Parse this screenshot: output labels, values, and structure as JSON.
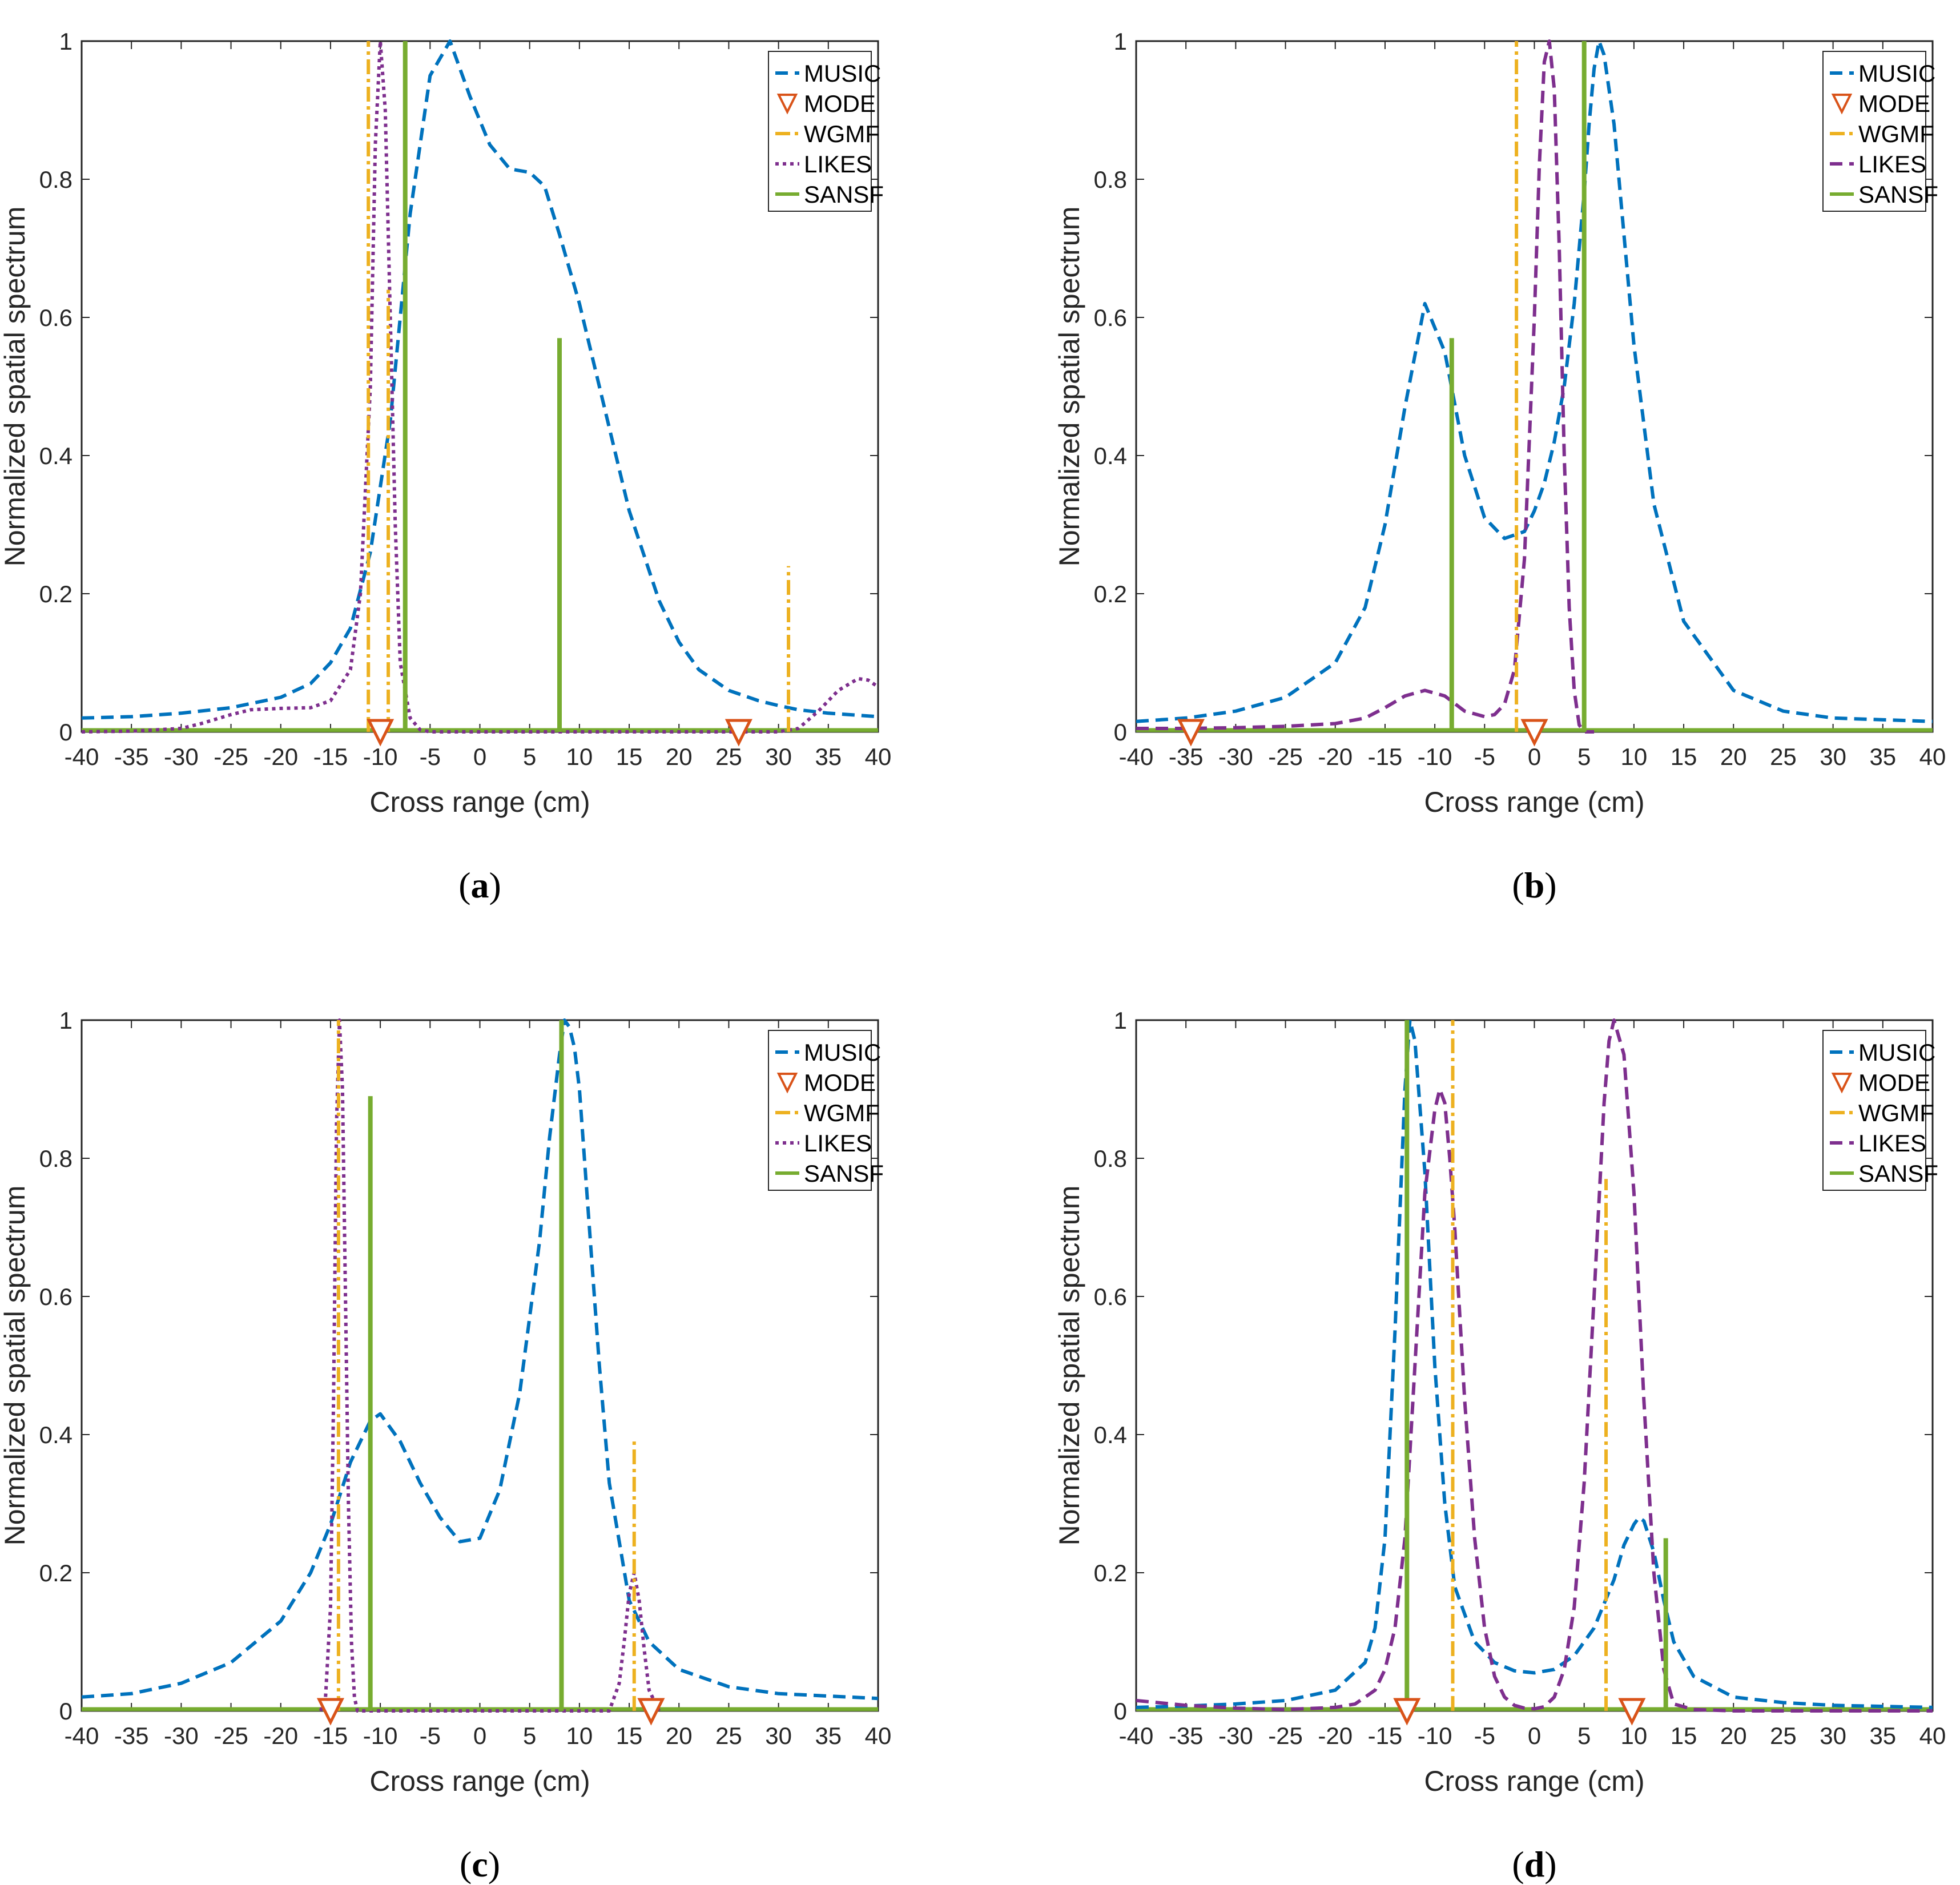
{
  "colors": {
    "MUSIC": "#0072BD",
    "MODE": "#D95319",
    "WGMF": "#EDB120",
    "LIKES": "#7E2F8E",
    "SANSF": "#77AC30"
  },
  "chart_data": [
    {
      "panel": "a",
      "caption_letter": "a",
      "type": "line",
      "xlabel": "Cross range (cm)",
      "ylabel": "Normalized spatial spectrum",
      "xlim": [
        -40,
        40
      ],
      "ylim": [
        0,
        1
      ],
      "xticks": [
        "-40",
        "-35",
        "-30",
        "-25",
        "-20",
        "-15",
        "-10",
        "-5",
        "0",
        "5",
        "10",
        "15",
        "20",
        "25",
        "30",
        "35",
        "40"
      ],
      "yticks": [
        "0",
        "0.2",
        "0.4",
        "0.6",
        "0.8",
        "1"
      ],
      "legend": [
        "MUSIC",
        "MODE",
        "WGMF",
        "LIKES",
        "SANSF"
      ],
      "series": {
        "MUSIC": {
          "style": "dashed",
          "x": [
            -40,
            -35,
            -30,
            -25,
            -20,
            -17,
            -15,
            -13,
            -11,
            -9,
            -7,
            -5,
            -3,
            -1,
            1,
            3,
            5,
            6.5,
            8,
            10,
            12,
            15,
            18,
            20,
            22,
            25,
            28,
            30,
            32,
            35,
            40
          ],
          "y": [
            0.02,
            0.022,
            0.027,
            0.035,
            0.05,
            0.07,
            0.1,
            0.15,
            0.26,
            0.45,
            0.75,
            0.95,
            1.0,
            0.92,
            0.85,
            0.815,
            0.81,
            0.79,
            0.72,
            0.62,
            0.5,
            0.32,
            0.19,
            0.13,
            0.09,
            0.06,
            0.045,
            0.038,
            0.032,
            0.027,
            0.022
          ]
        },
        "LIKES": {
          "style": "dotted",
          "x": [
            -40,
            -35,
            -30,
            -28,
            -25,
            -23,
            -20,
            -17,
            -15,
            -13,
            -12,
            -11,
            -10.5,
            -10,
            -9.5,
            -9,
            -8.5,
            -8,
            -7,
            -6,
            -5,
            -4,
            30,
            32,
            34,
            36,
            38,
            39,
            40
          ],
          "y": [
            0,
            0.001,
            0.005,
            0.012,
            0.025,
            0.032,
            0.034,
            0.035,
            0.045,
            0.09,
            0.2,
            0.5,
            0.85,
            1.0,
            0.9,
            0.6,
            0.3,
            0.1,
            0.02,
            0.003,
            0,
            0,
            0,
            0.005,
            0.03,
            0.06,
            0.077,
            0.075,
            0.065
          ]
        },
        "WGMF": {
          "style": "dashdot",
          "peaks": [
            [
              -11.2,
              1.0
            ],
            [
              -9.2,
              0.64
            ],
            [
              31,
              0.24
            ]
          ]
        },
        "SANSF": {
          "style": "solid",
          "peaks": [
            [
              -7.5,
              1.0
            ],
            [
              8,
              0.57
            ]
          ]
        },
        "MODE": {
          "style": "marker",
          "x": [
            -10,
            26
          ],
          "y": [
            0,
            0
          ]
        }
      }
    },
    {
      "panel": "b",
      "caption_letter": "b",
      "type": "line",
      "xlabel": "Cross range (cm)",
      "ylabel": "Normalized spatial spectrum",
      "xlim": [
        -40,
        40
      ],
      "ylim": [
        0,
        1
      ],
      "xticks": [
        "-40",
        "-35",
        "-30",
        "-25",
        "-20",
        "-15",
        "-10",
        "-5",
        "0",
        "5",
        "10",
        "15",
        "20",
        "25",
        "30",
        "35",
        "40"
      ],
      "yticks": [
        "0",
        "0.2",
        "0.4",
        "0.6",
        "0.8",
        "1"
      ],
      "legend": [
        "MUSIC",
        "MODE",
        "WGMF",
        "LIKES",
        "SANSF"
      ],
      "series": {
        "MUSIC": {
          "style": "dashed",
          "x": [
            -40,
            -35,
            -30,
            -25,
            -20,
            -17,
            -15,
            -13,
            -11,
            -9,
            -7,
            -5,
            -3,
            -1,
            0,
            1,
            2,
            3,
            4,
            5,
            5.5,
            6,
            6.5,
            7,
            8,
            9,
            10,
            12,
            15,
            20,
            25,
            30,
            40
          ],
          "y": [
            0.015,
            0.02,
            0.03,
            0.05,
            0.1,
            0.18,
            0.3,
            0.47,
            0.62,
            0.55,
            0.4,
            0.31,
            0.28,
            0.29,
            0.32,
            0.36,
            0.42,
            0.5,
            0.62,
            0.78,
            0.88,
            0.96,
            1.0,
            0.98,
            0.88,
            0.72,
            0.56,
            0.33,
            0.16,
            0.06,
            0.03,
            0.02,
            0.015
          ]
        },
        "LIKES": {
          "style": "dashed",
          "x": [
            -40,
            -35,
            -30,
            -25,
            -20,
            -17,
            -15,
            -13,
            -11,
            -9,
            -7,
            -5,
            -4,
            -3,
            -2,
            -1,
            0,
            0.5,
            1,
            1.5,
            2,
            2.5,
            3,
            3.5,
            4,
            4.5,
            5,
            6
          ],
          "y": [
            0.005,
            0.005,
            0.006,
            0.008,
            0.012,
            0.02,
            0.035,
            0.052,
            0.06,
            0.052,
            0.03,
            0.022,
            0.025,
            0.04,
            0.09,
            0.25,
            0.6,
            0.82,
            0.97,
            1.0,
            0.93,
            0.7,
            0.4,
            0.18,
            0.06,
            0.01,
            0,
            0
          ]
        },
        "WGMF": {
          "style": "dashdot",
          "peaks": [
            [
              -1.8,
              1.0
            ]
          ]
        },
        "SANSF": {
          "style": "solid",
          "peaks": [
            [
              -8.3,
              0.57
            ],
            [
              5,
              1.0
            ]
          ]
        },
        "MODE": {
          "style": "marker",
          "x": [
            -34.5,
            0
          ],
          "y": [
            0,
            0
          ]
        }
      }
    },
    {
      "panel": "c",
      "caption_letter": "c",
      "type": "line",
      "xlabel": "Cross range (cm)",
      "ylabel": "Normalized spatial spectrum",
      "xlim": [
        -40,
        40
      ],
      "ylim": [
        0,
        1
      ],
      "xticks": [
        "-40",
        "-35",
        "-30",
        "-25",
        "-20",
        "-15",
        "-10",
        "-5",
        "0",
        "5",
        "10",
        "15",
        "20",
        "25",
        "30",
        "35",
        "40"
      ],
      "yticks": [
        "0",
        "0.2",
        "0.4",
        "0.6",
        "0.8",
        "1"
      ],
      "legend": [
        "MUSIC",
        "MODE",
        "WGMF",
        "LIKES",
        "SANSF"
      ],
      "series": {
        "MUSIC": {
          "style": "dashed",
          "x": [
            -40,
            -35,
            -30,
            -25,
            -20,
            -17,
            -15,
            -13,
            -11,
            -10,
            -8,
            -6,
            -4,
            -2,
            0,
            2,
            4,
            6,
            7,
            8,
            8.5,
            9,
            9.5,
            10,
            11,
            12,
            13,
            15,
            17,
            20,
            25,
            30,
            40
          ],
          "y": [
            0.02,
            0.025,
            0.04,
            0.07,
            0.13,
            0.2,
            0.27,
            0.36,
            0.42,
            0.43,
            0.39,
            0.33,
            0.28,
            0.245,
            0.25,
            0.32,
            0.46,
            0.68,
            0.83,
            0.95,
            1.0,
            0.99,
            0.96,
            0.9,
            0.7,
            0.5,
            0.33,
            0.16,
            0.1,
            0.06,
            0.035,
            0.025,
            0.018
          ]
        },
        "LIKES": {
          "style": "dotted",
          "x": [
            -16,
            -15.5,
            -15,
            -14.7,
            -14.4,
            -14.1,
            -13.8,
            -13.5,
            -13.2,
            -12.9,
            -12.6,
            -12.3,
            13,
            14,
            14.5,
            15,
            15.5,
            16,
            16.5,
            17,
            18
          ],
          "y": [
            0,
            0.02,
            0.15,
            0.45,
            0.85,
            1.0,
            0.9,
            0.6,
            0.3,
            0.1,
            0.02,
            0,
            0,
            0.04,
            0.1,
            0.17,
            0.2,
            0.16,
            0.09,
            0.03,
            0
          ]
        },
        "WGMF": {
          "style": "dashdot",
          "peaks": [
            [
              -14.2,
              1.0
            ],
            [
              15.5,
              0.39
            ]
          ]
        },
        "SANSF": {
          "style": "solid",
          "peaks": [
            [
              -11,
              0.89
            ],
            [
              8.2,
              1.0
            ]
          ]
        },
        "MODE": {
          "style": "marker",
          "x": [
            -15,
            17.2
          ],
          "y": [
            0,
            0
          ]
        }
      }
    },
    {
      "panel": "d",
      "caption_letter": "d",
      "type": "line",
      "xlabel": "Cross range (cm)",
      "ylabel": "Normalized spatial spectrum",
      "xlim": [
        -40,
        40
      ],
      "ylim": [
        0,
        1
      ],
      "xticks": [
        "-40",
        "-35",
        "-30",
        "-25",
        "-20",
        "-15",
        "-10",
        "-5",
        "0",
        "5",
        "10",
        "15",
        "20",
        "25",
        "30",
        "35",
        "40"
      ],
      "yticks": [
        "0",
        "0.2",
        "0.4",
        "0.6",
        "0.8",
        "1"
      ],
      "legend": [
        "MUSIC",
        "MODE",
        "WGMF",
        "LIKES",
        "SANSF"
      ],
      "series": {
        "MUSIC": {
          "style": "dashed",
          "x": [
            -40,
            -35,
            -30,
            -25,
            -20,
            -17,
            -16,
            -15,
            -14,
            -13,
            -12.5,
            -12,
            -11,
            -10,
            -9,
            -8,
            -6,
            -4,
            -2,
            0,
            2,
            4,
            6,
            8,
            9,
            10,
            10.5,
            11,
            12,
            13,
            14,
            16,
            20,
            25,
            30,
            40
          ],
          "y": [
            0.005,
            0.007,
            0.01,
            0.015,
            0.03,
            0.07,
            0.12,
            0.25,
            0.55,
            0.9,
            1.0,
            0.97,
            0.78,
            0.5,
            0.3,
            0.18,
            0.1,
            0.07,
            0.058,
            0.055,
            0.06,
            0.08,
            0.12,
            0.19,
            0.24,
            0.27,
            0.28,
            0.275,
            0.23,
            0.16,
            0.1,
            0.05,
            0.02,
            0.012,
            0.008,
            0.005
          ]
        },
        "LIKES": {
          "style": "dashed",
          "x": [
            -40,
            -35,
            -30,
            -25,
            -20,
            -18,
            -16,
            -15,
            -14,
            -13,
            -12,
            -11,
            -10,
            -9.5,
            -9,
            -8.5,
            -8,
            -7,
            -6,
            -5,
            -4,
            -3,
            -2,
            -1,
            0,
            1,
            2,
            3,
            4,
            5,
            6,
            7,
            7.5,
            8,
            9,
            10,
            11,
            12,
            13,
            14,
            16,
            20,
            40
          ],
          "y": [
            0.015,
            0.008,
            0.004,
            0.002,
            0.005,
            0.01,
            0.03,
            0.06,
            0.12,
            0.25,
            0.5,
            0.75,
            0.87,
            0.9,
            0.88,
            0.8,
            0.7,
            0.45,
            0.25,
            0.12,
            0.05,
            0.02,
            0.008,
            0.004,
            0.003,
            0.006,
            0.02,
            0.06,
            0.15,
            0.33,
            0.6,
            0.88,
            0.97,
            1.0,
            0.95,
            0.75,
            0.45,
            0.2,
            0.06,
            0.01,
            0.002,
            0,
            0
          ]
        },
        "WGMF": {
          "style": "dashdot",
          "peaks": [
            [
              -8.2,
              1.0
            ],
            [
              7.2,
              0.77
            ]
          ]
        },
        "SANSF": {
          "style": "solid",
          "peaks": [
            [
              -12.8,
              1.0
            ],
            [
              13.2,
              0.25
            ]
          ]
        },
        "MODE": {
          "style": "marker",
          "x": [
            -12.8,
            9.8
          ],
          "y": [
            0,
            0
          ]
        }
      }
    }
  ]
}
